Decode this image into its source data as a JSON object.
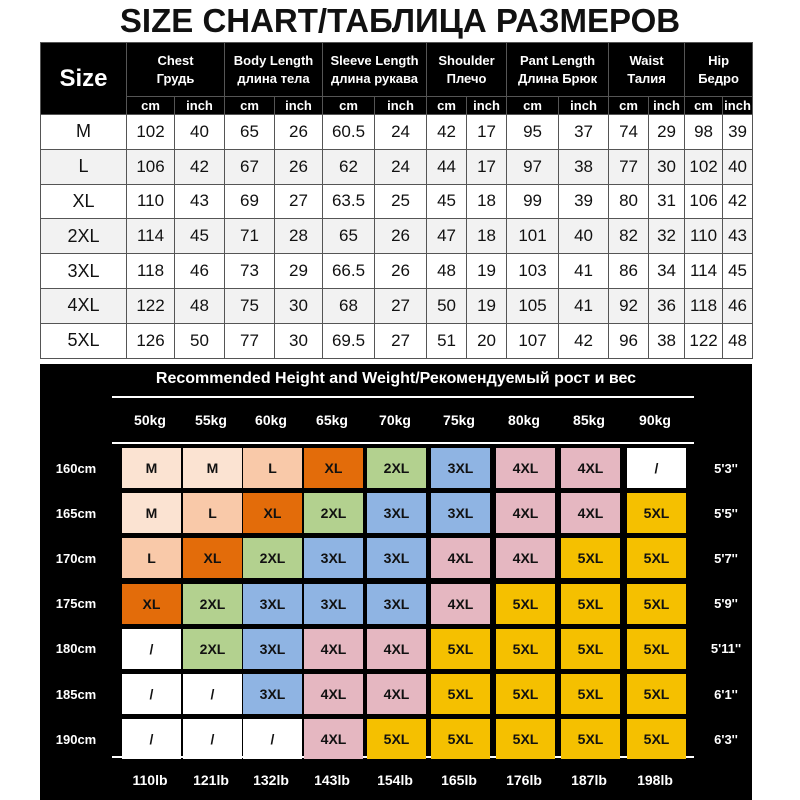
{
  "title": "SIZE CHART/ТАБЛИЦА РАЗМЕРОВ",
  "size_chart": {
    "size_label": "Size",
    "columns": [
      {
        "en": "Chest",
        "ru": "Грудь"
      },
      {
        "en": "Body Length",
        "ru": "длина тела"
      },
      {
        "en": "Sleeve Length",
        "ru": "длина рукава"
      },
      {
        "en": "Shoulder",
        "ru": "Плечо"
      },
      {
        "en": "Pant Length",
        "ru": "Длина Брюк"
      },
      {
        "en": "Waist",
        "ru": "Талия"
      },
      {
        "en": "Hip",
        "ru": "Бедро"
      }
    ],
    "units": [
      "cm",
      "inch"
    ],
    "rows": [
      {
        "size": "M",
        "values": [
          "102",
          "40",
          "65",
          "26",
          "60.5",
          "24",
          "42",
          "17",
          "95",
          "37",
          "74",
          "29",
          "98",
          "39"
        ]
      },
      {
        "size": "L",
        "values": [
          "106",
          "42",
          "67",
          "26",
          "62",
          "24",
          "44",
          "17",
          "97",
          "38",
          "77",
          "30",
          "102",
          "40"
        ]
      },
      {
        "size": "XL",
        "values": [
          "110",
          "43",
          "69",
          "27",
          "63.5",
          "25",
          "45",
          "18",
          "99",
          "39",
          "80",
          "31",
          "106",
          "42"
        ]
      },
      {
        "size": "2XL",
        "values": [
          "114",
          "45",
          "71",
          "28",
          "65",
          "26",
          "47",
          "18",
          "101",
          "40",
          "82",
          "32",
          "110",
          "43"
        ]
      },
      {
        "size": "3XL",
        "values": [
          "118",
          "46",
          "73",
          "29",
          "66.5",
          "26",
          "48",
          "19",
          "103",
          "41",
          "86",
          "34",
          "114",
          "45"
        ]
      },
      {
        "size": "4XL",
        "values": [
          "122",
          "48",
          "75",
          "30",
          "68",
          "27",
          "50",
          "19",
          "105",
          "41",
          "92",
          "36",
          "118",
          "46"
        ]
      },
      {
        "size": "5XL",
        "values": [
          "126",
          "50",
          "77",
          "30",
          "69.5",
          "27",
          "51",
          "20",
          "107",
          "42",
          "96",
          "38",
          "122",
          "48"
        ]
      }
    ]
  },
  "recommendation": {
    "title": "Recommended Height and Weight/Рекомендуемый рост и вес",
    "weights_kg": [
      "50kg",
      "55kg",
      "60kg",
      "65kg",
      "70kg",
      "75kg",
      "80kg",
      "85kg",
      "90kg"
    ],
    "weights_lb": [
      "110lb",
      "121lb",
      "132lb",
      "143lb",
      "154lb",
      "165lb",
      "176lb",
      "187lb",
      "198lb"
    ],
    "heights_cm": [
      "160cm",
      "165cm",
      "170cm",
      "175cm",
      "180cm",
      "185cm",
      "190cm"
    ],
    "heights_ft": [
      "5'3''",
      "5'5''",
      "5'7''",
      "5'9''",
      "5'11''",
      "6'1''",
      "6'3''"
    ],
    "grid": [
      [
        "M",
        "M",
        "L",
        "XL",
        "2XL",
        "3XL",
        "4XL",
        "4XL",
        "/"
      ],
      [
        "M",
        "L",
        "XL",
        "2XL",
        "3XL",
        "3XL",
        "4XL",
        "4XL",
        "5XL"
      ],
      [
        "L",
        "XL",
        "2XL",
        "3XL",
        "3XL",
        "4XL",
        "4XL",
        "5XL",
        "5XL"
      ],
      [
        "XL",
        "2XL",
        "3XL",
        "3XL",
        "3XL",
        "4XL",
        "5XL",
        "5XL",
        "5XL"
      ],
      [
        "/",
        "2XL",
        "3XL",
        "4XL",
        "4XL",
        "5XL",
        "5XL",
        "5XL",
        "5XL"
      ],
      [
        "/",
        "/",
        "3XL",
        "4XL",
        "4XL",
        "5XL",
        "5XL",
        "5XL",
        "5XL"
      ],
      [
        "/",
        "/",
        "/",
        "4XL",
        "5XL",
        "5XL",
        "5XL",
        "5XL",
        "5XL"
      ]
    ],
    "size_colors": {
      "M": "#fbe3d2",
      "L": "#f9c9a9",
      "XL": "#e36c0a",
      "2XL": "#b3d18f",
      "3XL": "#8fb4e3",
      "4XL": "#e5b7c1",
      "5XL": "#f5c000",
      "/": "#ffffff"
    }
  }
}
